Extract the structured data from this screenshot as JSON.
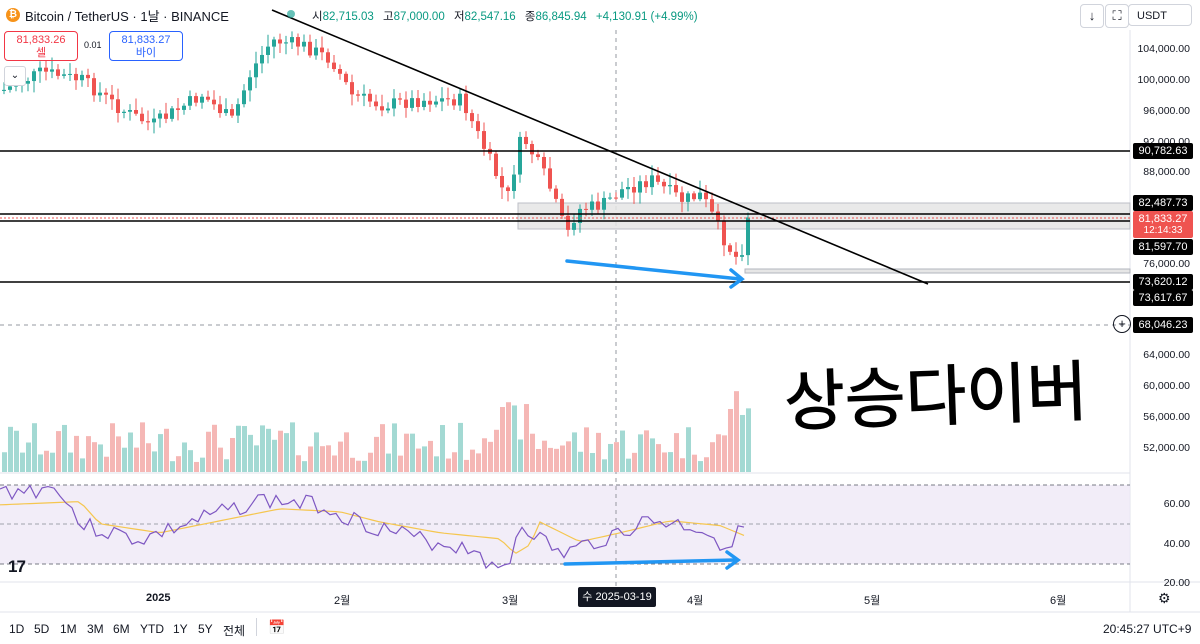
{
  "header": {
    "symbol_title": "Bitcoin / TetherUS · 1날 · BINANCE",
    "coin_icon": "bitcoin-icon",
    "ohlc": {
      "open_label": "시",
      "open": "82,715.03",
      "high_label": "고",
      "high": "87,000.00",
      "low_label": "저",
      "low": "82,547.16",
      "close_label": "종",
      "close": "86,845.94",
      "change": "+4,130.91 (+4.99%)"
    },
    "download_icon": "arrow-down-icon",
    "fullscreen_icon": "fullscreen-icon",
    "currency": "USDT"
  },
  "trade": {
    "sell_price": "81,833.26",
    "sell_label": "셀",
    "spread": "0.01",
    "buy_price": "81,833.27",
    "buy_label": "바이"
  },
  "price_axis": {
    "ticks": [
      "104,000.00",
      "100,000.00",
      "96,000.00",
      "92,000.00",
      "88,000.00",
      "76,000.00",
      "64,000.00",
      "60,000.00",
      "56,000.00",
      "52,000.00"
    ],
    "levels": [
      {
        "text": "90,782.63",
        "style": "dark"
      },
      {
        "text": "82,487.73",
        "style": "dark"
      },
      {
        "text": "81,833.27",
        "style": "red"
      },
      {
        "text": "12:14:33",
        "style": "red"
      },
      {
        "text": "81,597.70",
        "style": "dark"
      },
      {
        "text": "73,620.12",
        "style": "dark"
      },
      {
        "text": "73,617.67",
        "style": "dark"
      },
      {
        "text": "68,046.23",
        "style": "dark"
      }
    ]
  },
  "rsi_axis": {
    "ticks": [
      "60.00",
      "40.00",
      "20.00"
    ]
  },
  "time_axis": {
    "labels": [
      "2025",
      "2월",
      "3월",
      "4월",
      "5월",
      "6월"
    ],
    "crosshair_date": "수 2025-03-19"
  },
  "annotation_text": "상승다이버",
  "bottom_bar": {
    "ranges": [
      "1D",
      "5D",
      "1M",
      "3M",
      "6M",
      "YTD",
      "1Y",
      "5Y",
      "전체"
    ],
    "compare_icon": "calendar-range-icon",
    "clock": "20:45:27 UTC+9",
    "settings_icon": "gear-icon"
  },
  "colors": {
    "up": "#26a69a",
    "down": "#ef5350",
    "blue_arrow": "#2196f3",
    "rsi_line": "#7e57c2",
    "rsi_ma": "#f5c64f",
    "rsi_bg": "#ede7f6"
  },
  "chart_data": {
    "type": "candlestick",
    "last_price": "81,833.27",
    "countdown": "12:14:33"
  }
}
